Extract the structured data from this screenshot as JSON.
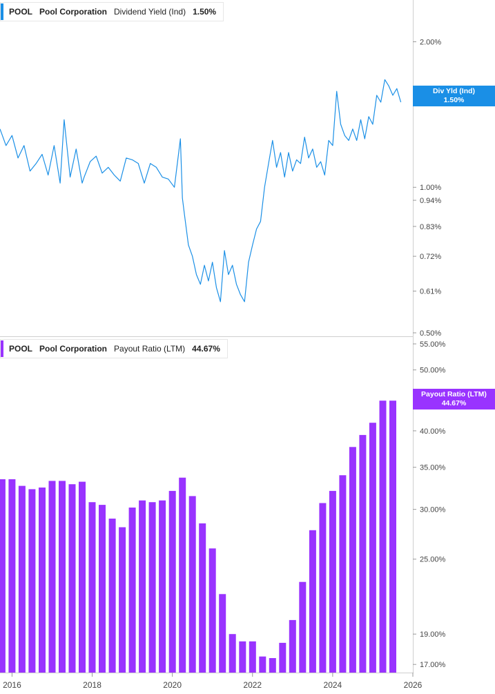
{
  "chart_data": [
    {
      "type": "line",
      "legend": {
        "ticker": "POOL",
        "company": "Pool Corporation",
        "metric": "Dividend Yield (Ind)",
        "value": "1.50%"
      },
      "badge": {
        "label": "Div Yld (Ind)",
        "value": "1.50%"
      },
      "color": "#1a8fe6",
      "yscale": "log",
      "ylim": [
        0.5,
        2.3
      ],
      "y_ticks": [
        2.0,
        1.0,
        0.94,
        0.83,
        0.72,
        0.61,
        0.5
      ],
      "y_tick_labels": [
        "2.00%",
        "1.00%",
        "0.94%",
        "0.83%",
        "0.72%",
        "0.61%",
        "0.50%"
      ],
      "xlim": [
        2015.7,
        2026.0
      ],
      "series": [
        {
          "x": [
            2015.7,
            2015.85,
            2016.0,
            2016.15,
            2016.3,
            2016.45,
            2016.6,
            2016.75,
            2016.9,
            2017.05,
            2017.2,
            2017.3,
            2017.45,
            2017.6,
            2017.75,
            2017.8,
            2017.95,
            2018.1,
            2018.25,
            2018.4,
            2018.55,
            2018.7,
            2018.85,
            2019.0,
            2019.15,
            2019.3,
            2019.45,
            2019.6,
            2019.75,
            2019.9,
            2020.05,
            2020.2,
            2020.25,
            2020.3,
            2020.4,
            2020.5,
            2020.6,
            2020.7,
            2020.8,
            2020.9,
            2021.0,
            2021.1,
            2021.2,
            2021.3,
            2021.4,
            2021.5,
            2021.6,
            2021.7,
            2021.8,
            2021.9,
            2022.0,
            2022.1,
            2022.2,
            2022.3,
            2022.4,
            2022.5,
            2022.6,
            2022.7,
            2022.8,
            2022.9,
            2023.0,
            2023.1,
            2023.2,
            2023.3,
            2023.4,
            2023.5,
            2023.6,
            2023.7,
            2023.8,
            2023.9,
            2024.0,
            2024.1,
            2024.2,
            2024.3,
            2024.4,
            2024.5,
            2024.6,
            2024.7,
            2024.8,
            2024.9,
            2025.0,
            2025.1,
            2025.2,
            2025.3,
            2025.4,
            2025.5,
            2025.6,
            2025.7
          ],
          "values": [
            1.32,
            1.22,
            1.28,
            1.15,
            1.22,
            1.08,
            1.12,
            1.17,
            1.06,
            1.22,
            1.02,
            1.38,
            1.05,
            1.2,
            1.02,
            1.05,
            1.13,
            1.16,
            1.07,
            1.1,
            1.06,
            1.03,
            1.15,
            1.14,
            1.12,
            1.02,
            1.12,
            1.1,
            1.05,
            1.04,
            1.0,
            1.26,
            0.95,
            0.88,
            0.76,
            0.72,
            0.66,
            0.63,
            0.69,
            0.64,
            0.7,
            0.62,
            0.58,
            0.74,
            0.66,
            0.69,
            0.63,
            0.6,
            0.58,
            0.7,
            0.76,
            0.82,
            0.85,
            1.0,
            1.12,
            1.25,
            1.1,
            1.18,
            1.05,
            1.18,
            1.08,
            1.14,
            1.12,
            1.27,
            1.15,
            1.2,
            1.1,
            1.13,
            1.06,
            1.25,
            1.22,
            1.58,
            1.35,
            1.28,
            1.25,
            1.32,
            1.25,
            1.38,
            1.26,
            1.4,
            1.35,
            1.55,
            1.5,
            1.67,
            1.62,
            1.55,
            1.6,
            1.5
          ]
        }
      ]
    },
    {
      "type": "bar",
      "legend": {
        "ticker": "POOL",
        "company": "Pool Corporation",
        "metric": "Payout Ratio (LTM)",
        "value": "44.67%"
      },
      "badge": {
        "label": "Payout Ratio (LTM)",
        "value": "44.67%"
      },
      "color": "#9933ff",
      "yscale": "log",
      "ylim": [
        16.5,
        55.0
      ],
      "y_ticks": [
        55,
        50,
        40,
        35,
        30,
        25,
        19,
        17
      ],
      "y_tick_labels": [
        "55.00%",
        "50.00%",
        "40.00%",
        "35.00%",
        "30.00%",
        "25.00%",
        "19.00%",
        "17.00%"
      ],
      "xlim": [
        2015.7,
        2026.0
      ],
      "x_ticks": [
        2016,
        2018,
        2020,
        2022,
        2024,
        2026
      ],
      "x_tick_labels": [
        "2016",
        "2018",
        "2020",
        "2022",
        "2024",
        "2026"
      ],
      "x": [
        2015.75,
        2016.0,
        2016.25,
        2016.5,
        2016.75,
        2017.0,
        2017.25,
        2017.5,
        2017.75,
        2018.0,
        2018.25,
        2018.5,
        2018.75,
        2019.0,
        2019.25,
        2019.5,
        2019.75,
        2020.0,
        2020.25,
        2020.5,
        2020.75,
        2021.0,
        2021.25,
        2021.5,
        2021.75,
        2022.0,
        2022.25,
        2022.5,
        2022.75,
        2023.0,
        2023.25,
        2023.5,
        2023.75,
        2024.0,
        2024.25,
        2024.5,
        2024.75,
        2025.0,
        2025.25,
        2025.5
      ],
      "values": [
        33.5,
        33.5,
        32.7,
        32.3,
        32.5,
        33.3,
        33.3,
        32.9,
        33.2,
        30.8,
        30.5,
        29.0,
        28.1,
        30.2,
        31.0,
        30.8,
        31.0,
        32.1,
        33.7,
        31.5,
        28.5,
        26.0,
        22.0,
        19.0,
        18.5,
        18.5,
        17.5,
        17.4,
        18.4,
        20.0,
        23.0,
        27.8,
        30.7,
        32.1,
        34.0,
        37.7,
        39.4,
        41.2,
        44.67,
        44.67
      ]
    }
  ]
}
